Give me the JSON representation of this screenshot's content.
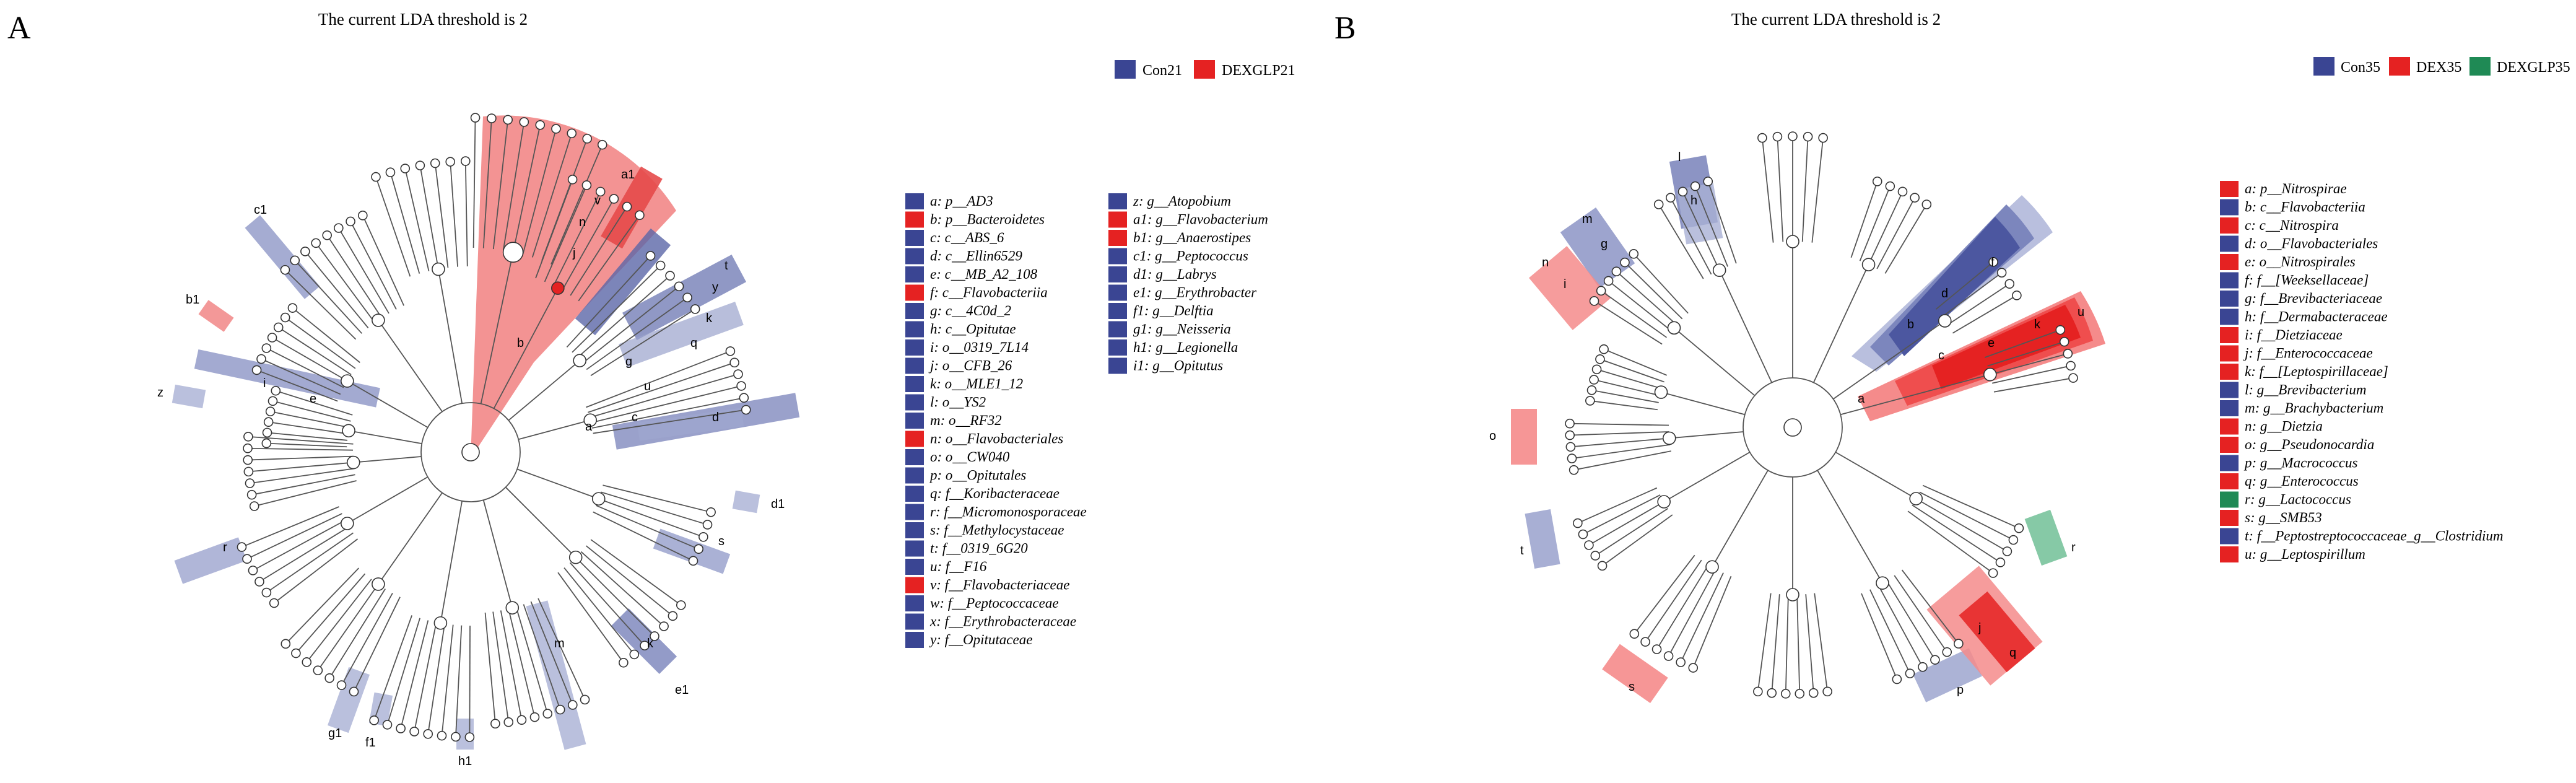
{
  "panels": [
    {
      "letter": "A",
      "title": "The current LDA threshold is 2",
      "groups": [
        {
          "name": "Con21",
          "color": "#3a4593"
        },
        {
          "name": "DEXGLP21",
          "color": "#e52222"
        }
      ],
      "key_columns": [
        [
          {
            "text": "a: p__AD3",
            "group": 0
          },
          {
            "text": "b: p__Bacteroidetes",
            "group": 1
          },
          {
            "text": "c: c__ABS_6",
            "group": 0
          },
          {
            "text": "d: c__Ellin6529",
            "group": 0
          },
          {
            "text": "e: c__MB_A2_108",
            "group": 0
          },
          {
            "text": "f: c__Flavobacteriia",
            "group": 1
          },
          {
            "text": "g: c__4C0d_2",
            "group": 0
          },
          {
            "text": "h: c__Opitutae",
            "group": 0
          },
          {
            "text": "i: o__0319_7L14",
            "group": 0
          },
          {
            "text": "j: o__CFB_26",
            "group": 0
          },
          {
            "text": "k: o__MLE1_12",
            "group": 0
          },
          {
            "text": "l: o__YS2",
            "group": 0
          },
          {
            "text": "m: o__RF32",
            "group": 0
          },
          {
            "text": "n: o__Flavobacteriales",
            "group": 1
          },
          {
            "text": "o: o__CW040",
            "group": 0
          },
          {
            "text": "p: o__Opitutales",
            "group": 0
          },
          {
            "text": "q: f__Koribacteraceae",
            "group": 0
          },
          {
            "text": "r: f__Micromonosporaceae",
            "group": 0
          },
          {
            "text": "s: f__Methylocystaceae",
            "group": 0
          },
          {
            "text": "t: f__0319_6G20",
            "group": 0
          },
          {
            "text": "u: f__F16",
            "group": 0
          },
          {
            "text": "v: f__Flavobacteriaceae",
            "group": 1
          },
          {
            "text": "w: f__Peptococcaceae",
            "group": 0
          },
          {
            "text": "x: f__Erythrobacteraceae",
            "group": 0
          },
          {
            "text": "y: f__Opitutaceae",
            "group": 0
          }
        ],
        [
          {
            "text": "z: g__Atopobium",
            "group": 0
          },
          {
            "text": "a1: g__Flavobacterium",
            "group": 1
          },
          {
            "text": "b1: g__Anaerostipes",
            "group": 1
          },
          {
            "text": "c1: g__Peptococcus",
            "group": 0
          },
          {
            "text": "d1: g__Labrys",
            "group": 0
          },
          {
            "text": "e1: g__Erythrobacter",
            "group": 0
          },
          {
            "text": "f1: g__Delftia",
            "group": 0
          },
          {
            "text": "g1: g__Neisseria",
            "group": 0
          },
          {
            "text": "h1: g__Legionella",
            "group": 0
          },
          {
            "text": "i1: g__Opitutus",
            "group": 0
          }
        ]
      ],
      "clade_labels": [
        "a1",
        "c1",
        "b1",
        "z",
        "e",
        "i",
        "d1",
        "s",
        "r",
        "k",
        "e1",
        "m",
        "g1",
        "f1",
        "h1",
        "c",
        "a",
        "d",
        "q",
        "u",
        "g",
        "k",
        "y",
        "t",
        "j",
        "n",
        "v",
        "b"
      ]
    },
    {
      "letter": "B",
      "title": "The current LDA threshold is 2",
      "groups": [
        {
          "name": "Con35",
          "color": "#3a4593"
        },
        {
          "name": "DEX35",
          "color": "#e52222"
        },
        {
          "name": "DEXGLP35",
          "color": "#1f8a55"
        }
      ],
      "key_columns": [
        [
          {
            "text": "a: p__Nitrospirae",
            "group": 1
          },
          {
            "text": "b: c__Flavobacteriia",
            "group": 0
          },
          {
            "text": "c: c__Nitrospira",
            "group": 1
          },
          {
            "text": "d: o__Flavobacteriales",
            "group": 0
          },
          {
            "text": "e: o__Nitrospirales",
            "group": 1
          },
          {
            "text": "f: f__[Weeksellaceae]",
            "group": 0
          },
          {
            "text": "g: f__Brevibacteriaceae",
            "group": 0
          },
          {
            "text": "h: f__Dermabacteraceae",
            "group": 0
          },
          {
            "text": "i: f__Dietziaceae",
            "group": 1
          },
          {
            "text": "j: f__Enterococcaceae",
            "group": 1
          },
          {
            "text": "k: f__[Leptospirillaceae]",
            "group": 1
          },
          {
            "text": "l: g__Brevibacterium",
            "group": 0
          },
          {
            "text": "m: g__Brachybacterium",
            "group": 0
          },
          {
            "text": "n: g__Dietzia",
            "group": 1
          },
          {
            "text": "o: g__Pseudonocardia",
            "group": 1
          },
          {
            "text": "p: g__Macrococcus",
            "group": 0
          },
          {
            "text": "q: g__Enterococcus",
            "group": 1
          },
          {
            "text": "r: g__Lactococcus",
            "group": 2
          },
          {
            "text": "s: g__SMB53",
            "group": 1
          },
          {
            "text": "t: f__Peptostreptococcaceae_g__Clostridium",
            "group": 0
          },
          {
            "text": "u: g__Leptospirillum",
            "group": 1
          }
        ]
      ],
      "clade_labels": [
        "l",
        "h",
        "m",
        "g",
        "n",
        "i",
        "o",
        "t",
        "s",
        "p",
        "j",
        "q",
        "r",
        "b",
        "d",
        "f",
        "a",
        "c",
        "e",
        "k",
        "u"
      ]
    }
  ]
}
